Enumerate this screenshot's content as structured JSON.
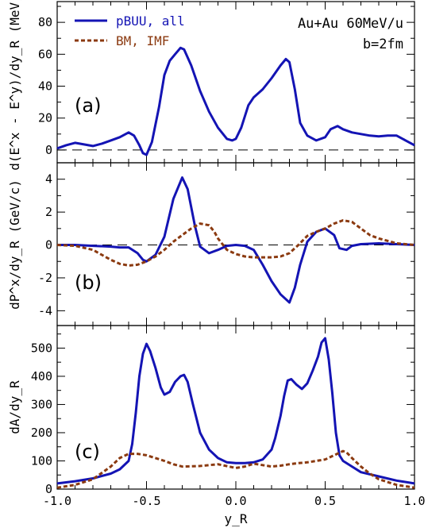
{
  "chart_data": [
    {
      "panel": "(a)",
      "type": "line",
      "ylabel": "d(E^x - E^y)/dy_R (MeV)",
      "xlim": [
        -1.0,
        1.0
      ],
      "ylim": [
        -8,
        93
      ],
      "yticks": [
        0,
        20,
        40,
        60,
        80
      ],
      "zero_line": true,
      "legend": {
        "placement": "top-left",
        "entries": [
          "pBUU, all",
          "BM, IMF"
        ]
      },
      "annotations": [
        "Au+Au 60MeV/u",
        "b=2fm"
      ],
      "series": [
        {
          "name": "pBUU, all",
          "color": "#1414b4",
          "x": [
            -1.0,
            -0.95,
            -0.9,
            -0.85,
            -0.8,
            -0.75,
            -0.7,
            -0.65,
            -0.6,
            -0.57,
            -0.54,
            -0.52,
            -0.5,
            -0.47,
            -0.43,
            -0.4,
            -0.37,
            -0.34,
            -0.31,
            -0.29,
            -0.25,
            -0.2,
            -0.15,
            -0.1,
            -0.05,
            -0.02,
            0.0,
            0.03,
            0.07,
            0.1,
            0.15,
            0.2,
            0.25,
            0.28,
            0.3,
            0.33,
            0.36,
            0.4,
            0.45,
            0.5,
            0.53,
            0.57,
            0.6,
            0.65,
            0.7,
            0.75,
            0.8,
            0.85,
            0.9,
            0.95,
            1.0
          ],
          "y": [
            1,
            3,
            4.5,
            3.5,
            2.5,
            4,
            6,
            8,
            11,
            9,
            3,
            -2,
            -3,
            5,
            27,
            47,
            56,
            60,
            64,
            63,
            53,
            37,
            24,
            14,
            7,
            6,
            7,
            14,
            28,
            33,
            38,
            45,
            53,
            57,
            55,
            38,
            17,
            9,
            6,
            8,
            13,
            15,
            13,
            11,
            10,
            9,
            8.5,
            9,
            9,
            6,
            3
          ]
        }
      ]
    },
    {
      "panel": "(b)",
      "type": "line",
      "ylabel": "dP^x/dy_R (GeV/c)",
      "xlim": [
        -1.0,
        1.0
      ],
      "ylim": [
        -4.9,
        5.0
      ],
      "yticks": [
        -4,
        -2,
        0,
        2,
        4
      ],
      "zero_line": true,
      "series": [
        {
          "name": "pBUU, all",
          "color": "#1414b4",
          "x": [
            -1.0,
            -0.9,
            -0.8,
            -0.7,
            -0.65,
            -0.6,
            -0.55,
            -0.52,
            -0.5,
            -0.45,
            -0.4,
            -0.35,
            -0.3,
            -0.27,
            -0.23,
            -0.2,
            -0.15,
            -0.1,
            -0.05,
            0.0,
            0.05,
            0.1,
            0.15,
            0.2,
            0.25,
            0.3,
            0.33,
            0.36,
            0.4,
            0.45,
            0.5,
            0.55,
            0.58,
            0.62,
            0.65,
            0.7,
            0.8,
            0.9,
            1.0
          ],
          "y": [
            0,
            0,
            -0.05,
            -0.1,
            -0.15,
            -0.15,
            -0.5,
            -0.9,
            -1.0,
            -0.6,
            0.5,
            2.8,
            4.1,
            3.4,
            1.2,
            -0.1,
            -0.5,
            -0.3,
            -0.05,
            0.0,
            -0.05,
            -0.3,
            -1.2,
            -2.2,
            -3.0,
            -3.5,
            -2.6,
            -1.2,
            0.2,
            0.8,
            1.0,
            0.6,
            -0.2,
            -0.3,
            -0.05,
            0.05,
            0.1,
            0.05,
            0.0
          ]
        },
        {
          "name": "BM, IMF",
          "color": "#8b3a10",
          "x": [
            -1.0,
            -0.9,
            -0.8,
            -0.75,
            -0.7,
            -0.65,
            -0.6,
            -0.55,
            -0.5,
            -0.45,
            -0.4,
            -0.35,
            -0.3,
            -0.25,
            -0.2,
            -0.15,
            -0.12,
            -0.1,
            -0.05,
            0.0,
            0.05,
            0.1,
            0.15,
            0.2,
            0.25,
            0.3,
            0.35,
            0.4,
            0.45,
            0.5,
            0.55,
            0.6,
            0.65,
            0.7,
            0.75,
            0.8,
            0.9,
            1.0
          ],
          "y": [
            0,
            -0.05,
            -0.3,
            -0.6,
            -0.9,
            -1.15,
            -1.25,
            -1.2,
            -1.0,
            -0.7,
            -0.3,
            0.2,
            0.6,
            1.0,
            1.3,
            1.2,
            0.8,
            0.4,
            -0.3,
            -0.55,
            -0.7,
            -0.75,
            -0.75,
            -0.75,
            -0.7,
            -0.5,
            0.0,
            0.55,
            0.8,
            1.0,
            1.3,
            1.5,
            1.4,
            1.0,
            0.6,
            0.4,
            0.1,
            0.0
          ]
        }
      ]
    },
    {
      "panel": "(c)",
      "type": "line",
      "ylabel": "dA/dy_R",
      "xlabel": "y_R",
      "xlim": [
        -1.0,
        1.0
      ],
      "ylim": [
        0,
        580
      ],
      "yticks": [
        0,
        100,
        200,
        300,
        400,
        500
      ],
      "xticks": [
        -1.0,
        -0.5,
        0.0,
        0.5,
        1.0
      ],
      "xticklabels": [
        "-1.0",
        "-0.5",
        "0.0",
        "0.5",
        "1.0"
      ],
      "series": [
        {
          "name": "pBUU, all",
          "color": "#1414b4",
          "x": [
            -1.0,
            -0.9,
            -0.8,
            -0.7,
            -0.65,
            -0.6,
            -0.58,
            -0.56,
            -0.54,
            -0.52,
            -0.5,
            -0.48,
            -0.45,
            -0.42,
            -0.4,
            -0.37,
            -0.34,
            -0.31,
            -0.29,
            -0.27,
            -0.24,
            -0.2,
            -0.15,
            -0.1,
            -0.05,
            0.0,
            0.05,
            0.1,
            0.15,
            0.2,
            0.22,
            0.25,
            0.27,
            0.29,
            0.31,
            0.34,
            0.37,
            0.4,
            0.43,
            0.46,
            0.48,
            0.5,
            0.52,
            0.54,
            0.56,
            0.58,
            0.6,
            0.65,
            0.7,
            0.8,
            0.9,
            1.0
          ],
          "y": [
            20,
            28,
            38,
            55,
            70,
            100,
            160,
            270,
            400,
            480,
            515,
            490,
            430,
            360,
            335,
            345,
            380,
            400,
            405,
            380,
            300,
            200,
            140,
            110,
            95,
            92,
            92,
            95,
            105,
            140,
            180,
            260,
            330,
            385,
            390,
            370,
            355,
            375,
            420,
            470,
            520,
            535,
            460,
            340,
            200,
            120,
            100,
            80,
            60,
            45,
            30,
            20
          ]
        },
        {
          "name": "BM, IMF",
          "color": "#8b3a10",
          "x": [
            -1.0,
            -0.9,
            -0.8,
            -0.7,
            -0.65,
            -0.6,
            -0.55,
            -0.5,
            -0.45,
            -0.4,
            -0.35,
            -0.3,
            -0.2,
            -0.1,
            0.0,
            0.05,
            0.1,
            0.15,
            0.2,
            0.25,
            0.3,
            0.35,
            0.4,
            0.45,
            0.5,
            0.55,
            0.6,
            0.62,
            0.65,
            0.7,
            0.75,
            0.8,
            0.9,
            1.0
          ],
          "y": [
            5,
            15,
            35,
            80,
            110,
            125,
            125,
            120,
            110,
            100,
            88,
            80,
            82,
            88,
            75,
            80,
            90,
            85,
            80,
            83,
            88,
            92,
            95,
            100,
            105,
            120,
            135,
            130,
            110,
            80,
            55,
            35,
            15,
            5
          ]
        }
      ]
    }
  ]
}
